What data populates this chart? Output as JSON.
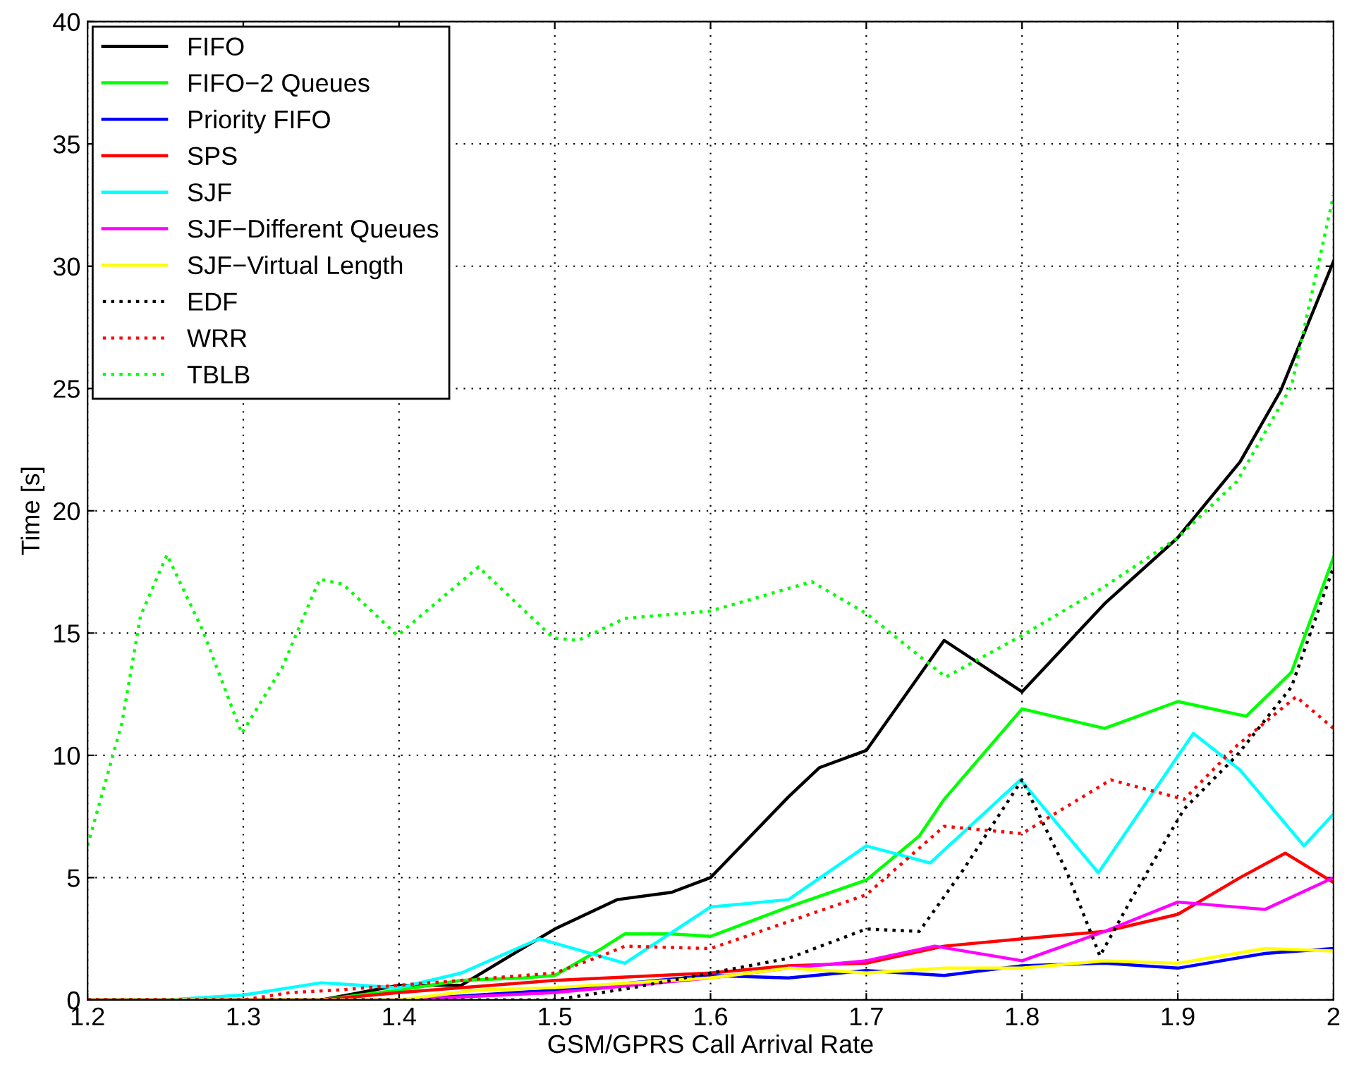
{
  "chart_data": {
    "type": "line",
    "xlabel": "GSM/GPRS Call Arrival Rate",
    "ylabel": "Time [s]",
    "xlim": [
      1.2,
      2.0
    ],
    "xticks": [
      1.2,
      1.3,
      1.4,
      1.5,
      1.6,
      1.7,
      1.8,
      1.9,
      2
    ],
    "ylim": [
      0,
      40
    ],
    "yticks": [
      0,
      5,
      10,
      15,
      20,
      25,
      30,
      35,
      40
    ],
    "grid": true,
    "legend": "top left",
    "marker": "none",
    "series": [
      {
        "name": "FIFO",
        "color": "#000000",
        "line_style": "solid",
        "x": [
          1.2,
          1.35,
          1.4,
          1.44,
          1.5,
          1.54,
          1.575,
          1.6,
          1.65,
          1.67,
          1.7,
          1.75,
          1.8,
          1.853,
          1.9,
          1.94,
          1.966,
          2.0
        ],
        "values": [
          0,
          0,
          0.6,
          0.6,
          2.9,
          4.1,
          4.4,
          5.0,
          8.3,
          9.5,
          10.2,
          14.7,
          12.6,
          16.2,
          18.9,
          22,
          24.9,
          30.2
        ]
      },
      {
        "name": "FIFO−2 Queues",
        "color": "#00ff00",
        "line_style": "solid",
        "x": [
          1.2,
          1.35,
          1.4,
          1.44,
          1.48,
          1.5,
          1.53,
          1.545,
          1.575,
          1.6,
          1.65,
          1.7,
          1.734,
          1.75,
          1.8,
          1.853,
          1.9,
          1.944,
          1.973,
          2.0
        ],
        "values": [
          0,
          0,
          0.4,
          0.8,
          0.9,
          1.0,
          2.1,
          2.7,
          2.7,
          2.6,
          3.8,
          4.9,
          6.7,
          8.2,
          11.9,
          11.1,
          12.2,
          11.6,
          13.4,
          18.1
        ]
      },
      {
        "name": "Priority FIFO",
        "color": "#0000ff",
        "line_style": "solid",
        "x": [
          1.2,
          1.4,
          1.5,
          1.6,
          1.65,
          1.7,
          1.75,
          1.8,
          1.853,
          1.9,
          1.956,
          2.0
        ],
        "values": [
          0,
          0,
          0.4,
          1.0,
          0.9,
          1.2,
          1.0,
          1.4,
          1.5,
          1.3,
          1.9,
          2.1
        ]
      },
      {
        "name": "SPS",
        "color": "#ff0000",
        "line_style": "solid",
        "x": [
          1.2,
          1.35,
          1.4,
          1.5,
          1.6,
          1.65,
          1.7,
          1.75,
          1.8,
          1.853,
          1.9,
          1.94,
          1.969,
          2.0
        ],
        "values": [
          0,
          0,
          0.3,
          0.8,
          1.1,
          1.4,
          1.5,
          2.2,
          2.5,
          2.8,
          3.5,
          5.0,
          6.0,
          4.8
        ]
      },
      {
        "name": "SJF",
        "color": "#00ffff",
        "line_style": "solid",
        "x": [
          1.2,
          1.25,
          1.3,
          1.35,
          1.4,
          1.44,
          1.49,
          1.545,
          1.6,
          1.65,
          1.7,
          1.741,
          1.799,
          1.849,
          1.91,
          1.94,
          1.981,
          2.0
        ],
        "values": [
          0,
          0,
          0.2,
          0.7,
          0.5,
          1.1,
          2.5,
          1.5,
          3.8,
          4.1,
          6.3,
          5.6,
          9.0,
          5.2,
          10.9,
          9.4,
          6.3,
          7.6
        ]
      },
      {
        "name": "SJF−Different Queues",
        "color": "#ff00ff",
        "line_style": "solid",
        "x": [
          1.2,
          1.4,
          1.5,
          1.6,
          1.65,
          1.7,
          1.744,
          1.8,
          1.853,
          1.9,
          1.956,
          2.0
        ],
        "values": [
          0,
          0,
          0.3,
          0.9,
          1.3,
          1.6,
          2.2,
          1.6,
          2.8,
          4.0,
          3.7,
          5.0
        ]
      },
      {
        "name": "SJF−Virtual Length",
        "color": "#ffff00",
        "line_style": "solid",
        "x": [
          1.2,
          1.4,
          1.45,
          1.5,
          1.6,
          1.65,
          1.7,
          1.75,
          1.8,
          1.853,
          1.9,
          1.956,
          2.0
        ],
        "values": [
          0,
          0,
          0.4,
          0.5,
          0.9,
          1.3,
          1.1,
          1.3,
          1.3,
          1.6,
          1.5,
          2.1,
          2.0
        ]
      },
      {
        "name": "EDF",
        "color": "#000000",
        "line_style": "dotted",
        "x": [
          1.2,
          1.5,
          1.55,
          1.6,
          1.65,
          1.7,
          1.734,
          1.761,
          1.8,
          1.829,
          1.85,
          1.87,
          1.904,
          1.938,
          1.973,
          2.0
        ],
        "values": [
          0,
          0,
          0.5,
          1.1,
          1.7,
          2.9,
          2.8,
          5.2,
          9.0,
          5.2,
          1.8,
          4.1,
          7.8,
          10.0,
          12.8,
          17.7
        ]
      },
      {
        "name": "WRR",
        "color": "#ff0000",
        "line_style": "dotted",
        "x": [
          1.2,
          1.3,
          1.33,
          1.36,
          1.46,
          1.5,
          1.53,
          1.545,
          1.6,
          1.65,
          1.7,
          1.75,
          1.8,
          1.857,
          1.904,
          1.938,
          1.976,
          2.0
        ],
        "values": [
          0,
          0,
          0.3,
          0.4,
          0.9,
          1.1,
          1.8,
          2.2,
          2.1,
          3.2,
          4.3,
          7.1,
          6.8,
          9.0,
          8.2,
          10.4,
          12.4,
          11.1
        ]
      },
      {
        "name": "TBLB",
        "color": "#00ff00",
        "line_style": "dotted",
        "x": [
          1.2,
          1.222,
          1.234,
          1.251,
          1.274,
          1.299,
          1.325,
          1.349,
          1.364,
          1.399,
          1.451,
          1.499,
          1.515,
          1.545,
          1.6,
          1.665,
          1.7,
          1.751,
          1.8,
          1.853,
          1.9,
          1.938,
          1.973,
          2.0
        ],
        "values": [
          6.3,
          11.3,
          15.7,
          18.2,
          15.1,
          10.9,
          13.6,
          17.2,
          17.0,
          14.9,
          17.7,
          14.8,
          14.7,
          15.6,
          15.9,
          17.1,
          15.8,
          13.2,
          14.9,
          16.9,
          18.9,
          21.2,
          25.1,
          32.9
        ]
      }
    ]
  }
}
